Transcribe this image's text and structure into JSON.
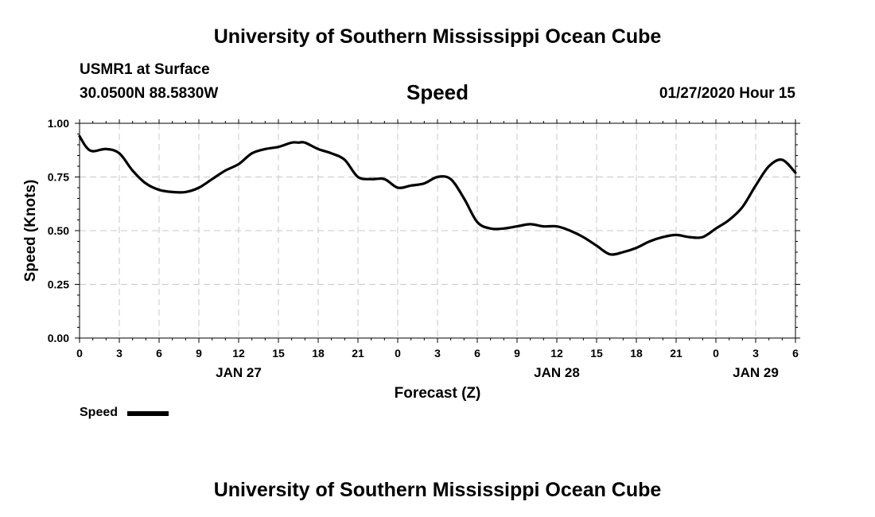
{
  "header": {
    "title": "University of Southern Mississippi Ocean Cube",
    "station": "USMR1 at Surface",
    "coords": "30.0500N 88.5830W",
    "variable": "Speed",
    "forecast_time": "01/27/2020 Hour 15"
  },
  "footer": {
    "title": "University of Southern Mississippi Ocean Cube"
  },
  "legend": {
    "label": "Speed",
    "color": "#000000"
  },
  "chart_data": {
    "type": "line",
    "title": "Speed",
    "xlabel": "Forecast (Z)",
    "ylabel": "Speed (Knots)",
    "xlim": [
      0,
      54
    ],
    "ylim": [
      0,
      1.0
    ],
    "y_ticks": [
      "0.00",
      "0.25",
      "0.50",
      "0.75",
      "1.00"
    ],
    "x_ticks": [
      "0",
      "3",
      "6",
      "9",
      "12",
      "15",
      "18",
      "21",
      "0",
      "3",
      "6",
      "9",
      "12",
      "15",
      "18",
      "21",
      "0",
      "3",
      "6"
    ],
    "date_labels": [
      {
        "label": "JAN 27",
        "hour": 12
      },
      {
        "label": "JAN 28",
        "hour": 36
      },
      {
        "label": "JAN 29",
        "hour": 51
      }
    ],
    "grid": true,
    "legend": "bottom-left",
    "series": [
      {
        "name": "Speed",
        "color": "#000000",
        "x": [
          0,
          0.5,
          1,
          2,
          3,
          4,
          5,
          6,
          7,
          8,
          9,
          10,
          11,
          12,
          13,
          14,
          15,
          16,
          16.5,
          17,
          18,
          19,
          20,
          21,
          22,
          23,
          24,
          25,
          26,
          27,
          28,
          29,
          30,
          31,
          32,
          33,
          34,
          35,
          36,
          37,
          38,
          39,
          40,
          41,
          42,
          43,
          44,
          45,
          46,
          47,
          48,
          49,
          50,
          51,
          52,
          53,
          54
        ],
        "values": [
          0.94,
          0.89,
          0.87,
          0.88,
          0.86,
          0.78,
          0.72,
          0.69,
          0.68,
          0.68,
          0.7,
          0.74,
          0.78,
          0.81,
          0.86,
          0.88,
          0.89,
          0.91,
          0.91,
          0.91,
          0.88,
          0.86,
          0.83,
          0.75,
          0.74,
          0.74,
          0.7,
          0.71,
          0.72,
          0.75,
          0.74,
          0.65,
          0.54,
          0.51,
          0.51,
          0.52,
          0.53,
          0.52,
          0.52,
          0.5,
          0.47,
          0.43,
          0.39,
          0.4,
          0.42,
          0.45,
          0.47,
          0.48,
          0.47,
          0.47,
          0.51,
          0.55,
          0.61,
          0.71,
          0.8,
          0.83,
          0.77
        ]
      }
    ]
  }
}
